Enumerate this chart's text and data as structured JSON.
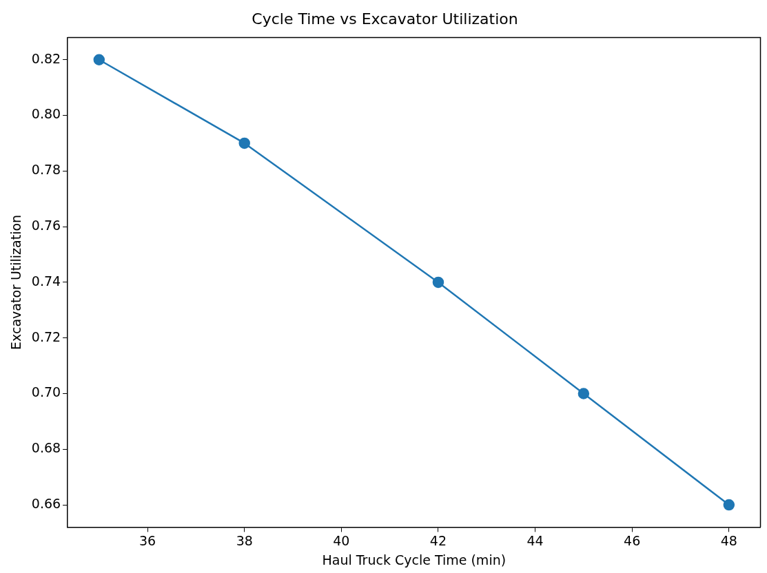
{
  "chart_data": {
    "type": "line",
    "title": "Cycle Time vs Excavator Utilization",
    "xlabel": "Haul Truck Cycle Time (min)",
    "ylabel": "Excavator Utilization",
    "x": [
      35,
      38,
      42,
      45,
      48
    ],
    "series": [
      {
        "color": "#1f77b4",
        "values": [
          0.82,
          0.79,
          0.74,
          0.7,
          0.66
        ]
      }
    ],
    "xlim": [
      34.35,
      48.65
    ],
    "xticks": [
      36,
      38,
      40,
      42,
      44,
      46,
      48
    ],
    "ylim": [
      0.652,
      0.828
    ],
    "yticks": [
      0.66,
      0.68,
      {
        "value": 0.7,
        "label": "0.70"
      },
      0.72,
      0.74,
      0.76,
      0.78,
      {
        "value": 0.8,
        "label": "0.80"
      },
      0.82
    ],
    "grid": false,
    "legend": false,
    "marker": "circle",
    "line_style": "solid"
  }
}
